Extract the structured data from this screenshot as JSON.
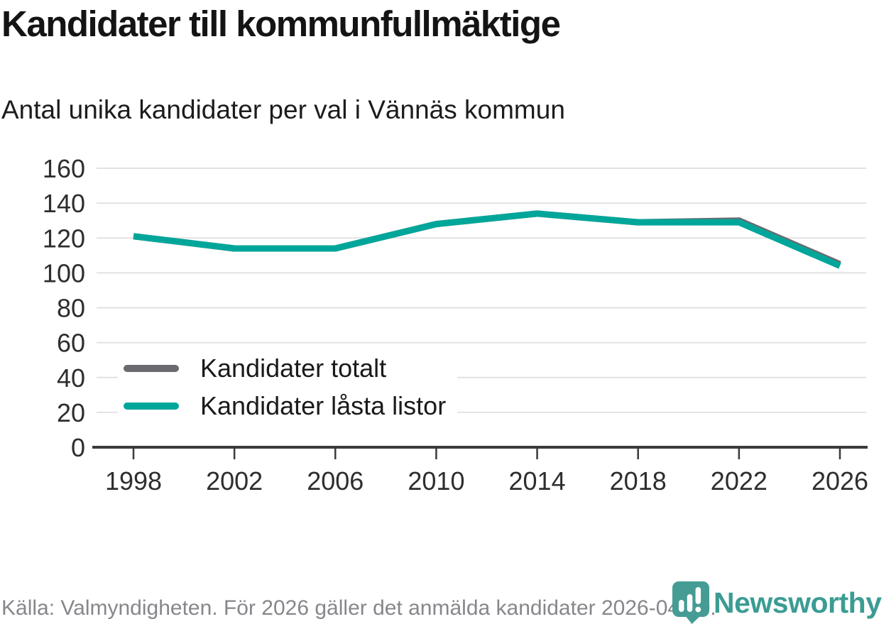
{
  "header": {
    "title": "Kandidater till kommunfullmäktige",
    "subtitle": "Antal unika kandidater per val i Vännäs kommun"
  },
  "chart_data": {
    "type": "line",
    "x": [
      1998,
      2002,
      2006,
      2010,
      2014,
      2018,
      2022,
      2026
    ],
    "series": [
      {
        "name": "Kandidater totalt",
        "color": "#6b6a70",
        "values": [
          121,
          114,
          114,
          128,
          134,
          129,
          130,
          105
        ]
      },
      {
        "name": "Kandidater låsta listor",
        "color": "#00a69a",
        "values": [
          121,
          114,
          114,
          128,
          134,
          129,
          129,
          104
        ]
      }
    ],
    "ylim": [
      0,
      160
    ],
    "ytick_step": 20,
    "grid": "horizontal",
    "legend_position": "inside-bottom-left"
  },
  "footer": {
    "source": "Källa: Valmyndigheten. För 2026 gäller det anmälda kandidater 2026-04-10."
  },
  "logo": {
    "text": "Newsworthy",
    "icon": "newsworthy-speech-bubble-bar-chart",
    "color": "#3b9c93",
    "icon_color": "#459c94"
  },
  "colors": {
    "gridline": "#e2e2e2",
    "axis": "#3a3a3a",
    "tick_label": "#2e2e2e"
  }
}
